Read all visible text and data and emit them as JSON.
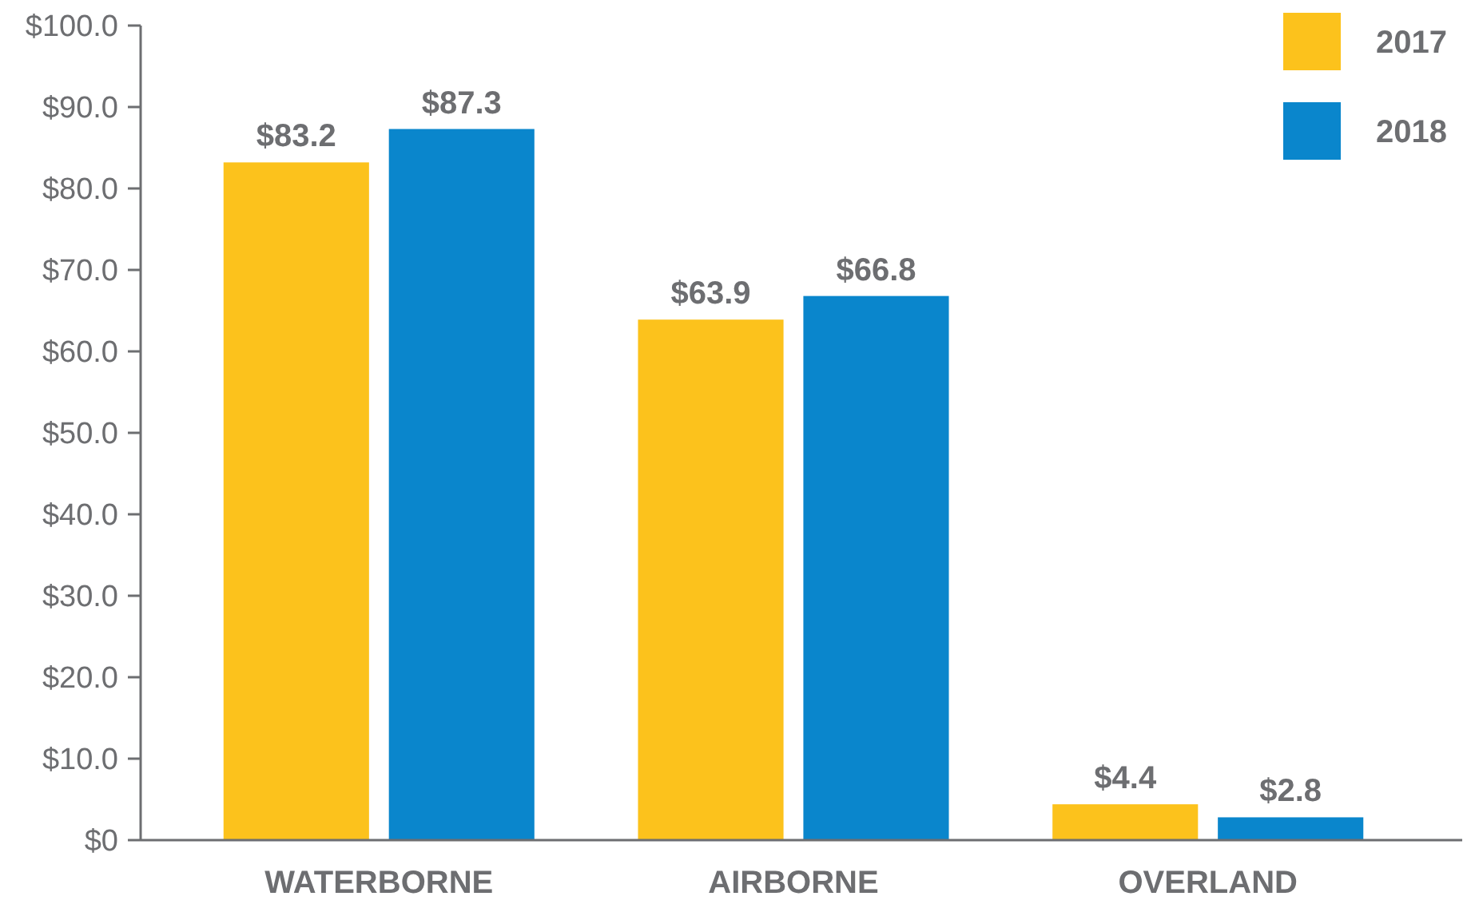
{
  "chart_data": {
    "type": "bar",
    "categories": [
      "WATERBORNE",
      "AIRBORNE",
      "OVERLAND"
    ],
    "series": [
      {
        "name": "2017",
        "color": "#fcc21c",
        "values": [
          83.2,
          63.9,
          4.4
        ],
        "value_labels": [
          "$83.2",
          "$63.9",
          "$4.4"
        ]
      },
      {
        "name": "2018",
        "color": "#0a86cc",
        "values": [
          87.3,
          66.8,
          2.8
        ],
        "value_labels": [
          "$87.3",
          "$66.8",
          "$2.8"
        ]
      }
    ],
    "ylim": [
      0,
      100
    ],
    "yticks": [
      {
        "value": 0,
        "label": "$0"
      },
      {
        "value": 10,
        "label": "$10.0"
      },
      {
        "value": 20,
        "label": "$20.0"
      },
      {
        "value": 30,
        "label": "$30.0"
      },
      {
        "value": 40,
        "label": "$40.0"
      },
      {
        "value": 50,
        "label": "$50.0"
      },
      {
        "value": 60,
        "label": "$60.0"
      },
      {
        "value": 70,
        "label": "$70.0"
      },
      {
        "value": 80,
        "label": "$80.0"
      },
      {
        "value": 90,
        "label": "$90.0"
      },
      {
        "value": 100,
        "label": "$100.0"
      }
    ],
    "grid": false,
    "legend": "top right"
  }
}
